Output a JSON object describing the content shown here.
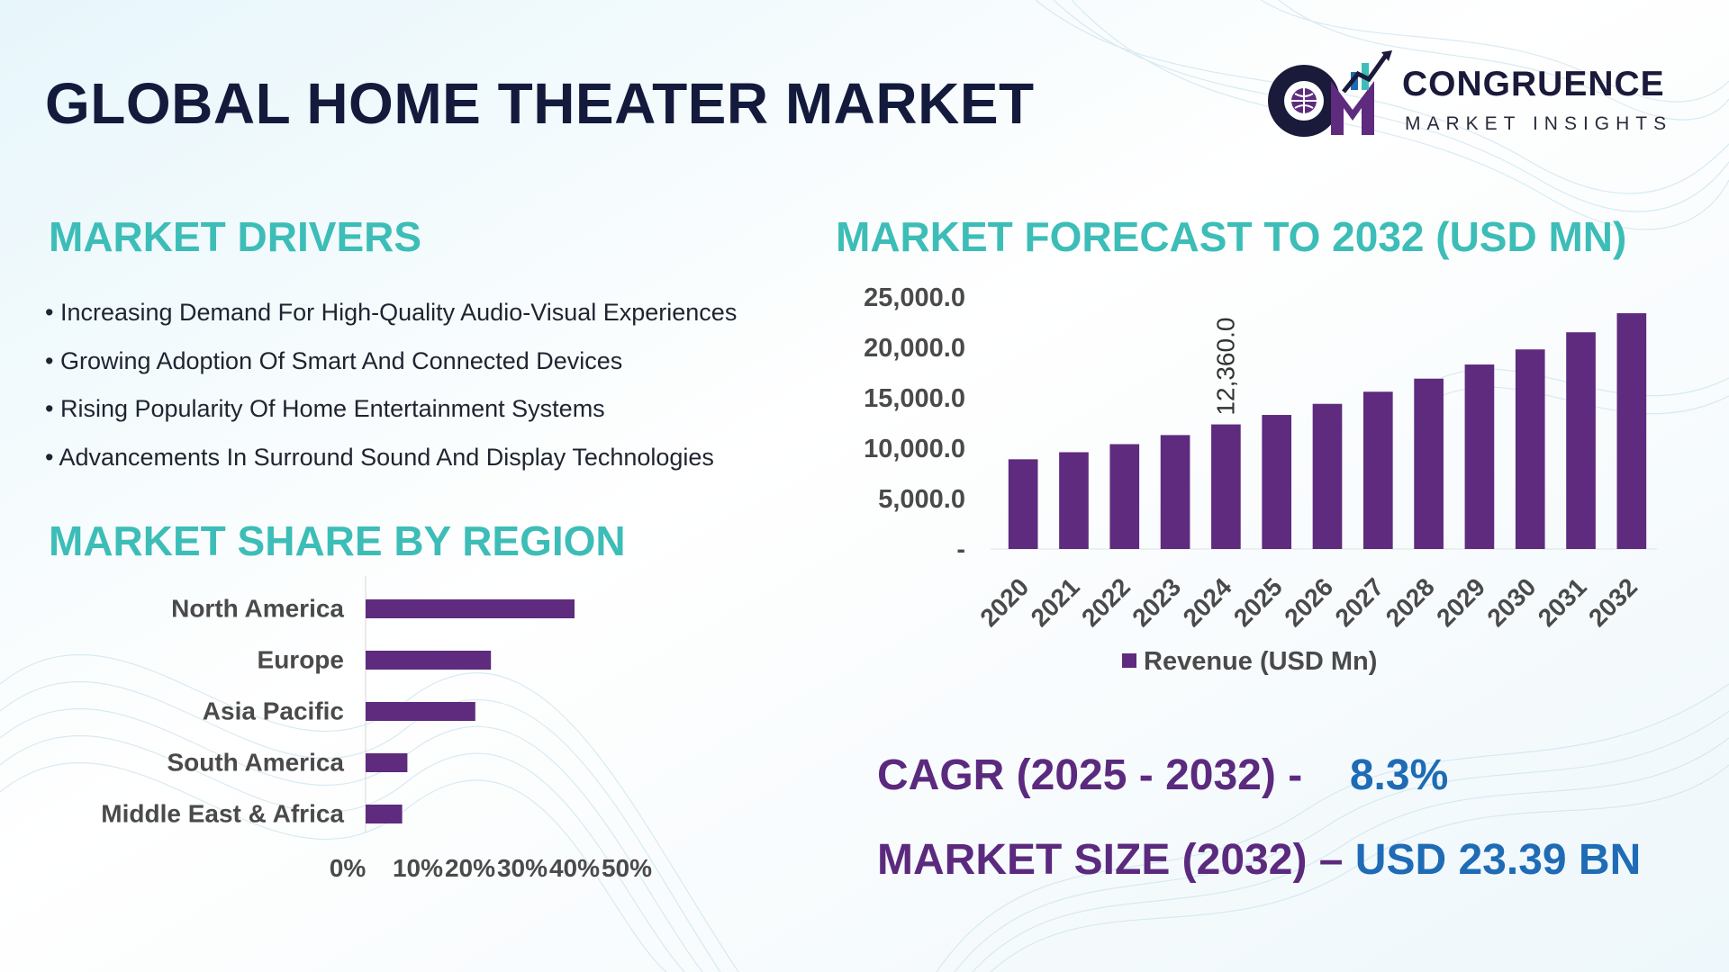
{
  "header": {
    "title": "GLOBAL HOME THEATER MARKET",
    "logo": {
      "mark": "CM",
      "name": "CONGRUENCE",
      "tagline": "MARKET INSIGHTS"
    }
  },
  "drivers": {
    "heading": "MARKET DRIVERS",
    "items": [
      "• Increasing Demand For High-Quality Audio-Visual Experiences",
      "• Growing Adoption Of Smart And Connected Devices",
      "• Rising Popularity Of Home Entertainment Systems",
      "• Advancements In Surround Sound And Display Technologies"
    ]
  },
  "region": {
    "heading": "MARKET SHARE BY REGION"
  },
  "forecast": {
    "heading": "MARKET FORECAST TO 2032 (USD MN)"
  },
  "stats": {
    "cagr_label": "CAGR (2025 - 2032) -",
    "cagr_value": "8.3%",
    "size_label": "MARKET SIZE (2032) –",
    "size_value": "USD 23.39 BN"
  },
  "colors": {
    "bar": "#5e2b7e",
    "heading": "#3dbdb7",
    "title": "#141a3c",
    "stat_label": "#5b2a7e",
    "stat_value": "#1f6bb5"
  },
  "chart_data": [
    {
      "type": "bar",
      "orientation": "horizontal",
      "title": "MARKET SHARE BY REGION",
      "categories": [
        "North America",
        "Europe",
        "Asia Pacific",
        "South America",
        "Middle East & Africa"
      ],
      "values": [
        40,
        24,
        21,
        8,
        7
      ],
      "unit": "%",
      "xlim": [
        0,
        50
      ],
      "x_ticks": [
        "0%",
        "10%",
        "20%",
        "30%",
        "40%",
        "50%"
      ],
      "grid": false,
      "legend": "none"
    },
    {
      "type": "bar",
      "title": "MARKET FORECAST TO 2032 (USD MN)",
      "categories": [
        "2020",
        "2021",
        "2022",
        "2023",
        "2024",
        "2025",
        "2026",
        "2027",
        "2028",
        "2029",
        "2030",
        "2031",
        "2032"
      ],
      "series": [
        {
          "name": "Revenue (USD Mn)",
          "values": [
            8900,
            9600,
            10400,
            11300,
            12360,
            13300,
            14400,
            15600,
            16900,
            18300,
            19800,
            21500,
            23390
          ]
        }
      ],
      "data_labels": [
        {
          "category": "2024",
          "text": "12,360.0"
        }
      ],
      "ylim": [
        0,
        25000
      ],
      "y_ticks": [
        "-",
        "5,000.0",
        "10,000.0",
        "15,000.0",
        "20,000.0",
        "25,000.0"
      ],
      "y_tick_values": [
        0,
        5000,
        10000,
        15000,
        20000,
        25000
      ],
      "grid": false,
      "legend": "bottom-center"
    }
  ]
}
